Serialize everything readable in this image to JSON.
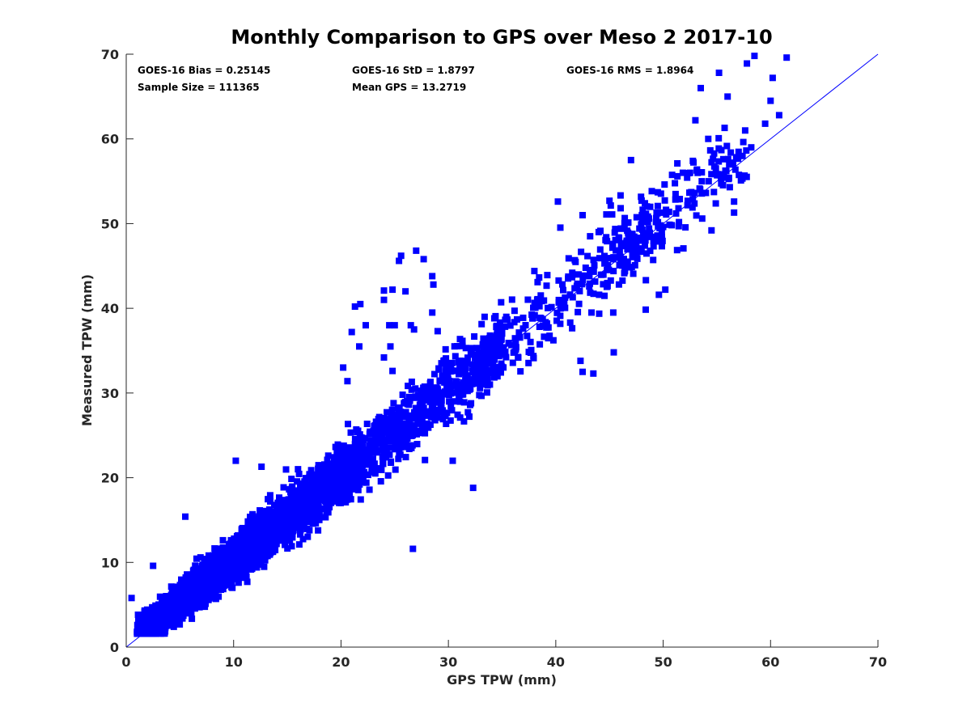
{
  "chart_data": {
    "type": "scatter",
    "title": "Monthly Comparison to GPS over Meso 2 2017-10",
    "xlabel": "GPS TPW (mm)",
    "ylabel": "Measured TPW (mm)",
    "xlim": [
      0,
      70
    ],
    "ylim": [
      0,
      70
    ],
    "xticks": [
      0,
      10,
      20,
      30,
      40,
      50,
      60,
      70
    ],
    "yticks": [
      0,
      10,
      20,
      30,
      40,
      50,
      60,
      70
    ],
    "grid": false,
    "marker": "square",
    "color": "#0000ff",
    "reference_line": {
      "x": [
        0,
        70
      ],
      "y": [
        0,
        70
      ]
    },
    "stats": [
      "GOES-16 Bias = 0.25145",
      "GOES-16 StD = 1.8797",
      "GOES-16 RMS = 1.8964",
      "Sample Size = 111365",
      "Mean GPS = 13.2719"
    ],
    "bias": 0.25145,
    "std": 1.8797,
    "rms": 1.8964,
    "sample_size": 111365,
    "mean_gps": 13.2719,
    "outliers": [
      [
        58.5,
        69.8
      ],
      [
        61.5,
        69.6
      ],
      [
        57.8,
        68.9
      ],
      [
        60.2,
        67.2
      ],
      [
        55.2,
        67.8
      ],
      [
        53.5,
        66.0
      ],
      [
        60.0,
        64.5
      ],
      [
        56.0,
        65.0
      ],
      [
        59.5,
        61.8
      ],
      [
        60.8,
        62.8
      ],
      [
        53.0,
        62.2
      ],
      [
        54.2,
        60.0
      ],
      [
        55.6,
        57.6
      ],
      [
        58.2,
        59.0
      ],
      [
        47.0,
        57.5
      ],
      [
        52.5,
        56.0
      ],
      [
        53.6,
        55.0
      ],
      [
        56.2,
        54.3
      ],
      [
        56.6,
        52.6
      ],
      [
        56.6,
        51.3
      ],
      [
        54.5,
        49.2
      ],
      [
        45.0,
        52.7
      ],
      [
        40.2,
        52.6
      ],
      [
        48.3,
        52.4
      ],
      [
        49.5,
        53.7
      ],
      [
        51.2,
        51.2
      ],
      [
        42.5,
        51.0
      ],
      [
        44.0,
        49.0
      ],
      [
        43.2,
        48.5
      ],
      [
        49.6,
        41.6
      ],
      [
        50.2,
        42.2
      ],
      [
        45.4,
        34.8
      ],
      [
        42.3,
        33.8
      ],
      [
        42.5,
        32.5
      ],
      [
        43.5,
        32.3
      ],
      [
        27.0,
        46.8
      ],
      [
        25.6,
        46.2
      ],
      [
        25.4,
        45.6
      ],
      [
        27.7,
        45.8
      ],
      [
        28.5,
        43.8
      ],
      [
        28.6,
        42.8
      ],
      [
        24.0,
        42.1
      ],
      [
        24.8,
        42.2
      ],
      [
        26.0,
        42.0
      ],
      [
        24.0,
        41.0
      ],
      [
        21.8,
        40.5
      ],
      [
        21.3,
        40.2
      ],
      [
        28.5,
        39.5
      ],
      [
        22.3,
        38.0
      ],
      [
        24.5,
        38.0
      ],
      [
        25.0,
        38.0
      ],
      [
        26.5,
        38.0
      ],
      [
        21.0,
        37.2
      ],
      [
        26.8,
        37.5
      ],
      [
        29.0,
        37.3
      ],
      [
        21.7,
        35.5
      ],
      [
        24.6,
        35.5
      ],
      [
        24.0,
        34.2
      ],
      [
        24.8,
        32.6
      ],
      [
        20.2,
        33.0
      ],
      [
        20.6,
        31.4
      ],
      [
        32.3,
        18.8
      ],
      [
        26.7,
        11.6
      ],
      [
        2.5,
        9.6
      ],
      [
        5.5,
        15.4
      ],
      [
        10.2,
        22.0
      ],
      [
        12.6,
        21.3
      ],
      [
        16.0,
        21.0
      ],
      [
        0.5,
        5.8
      ],
      [
        30.4,
        22.0
      ]
    ]
  }
}
